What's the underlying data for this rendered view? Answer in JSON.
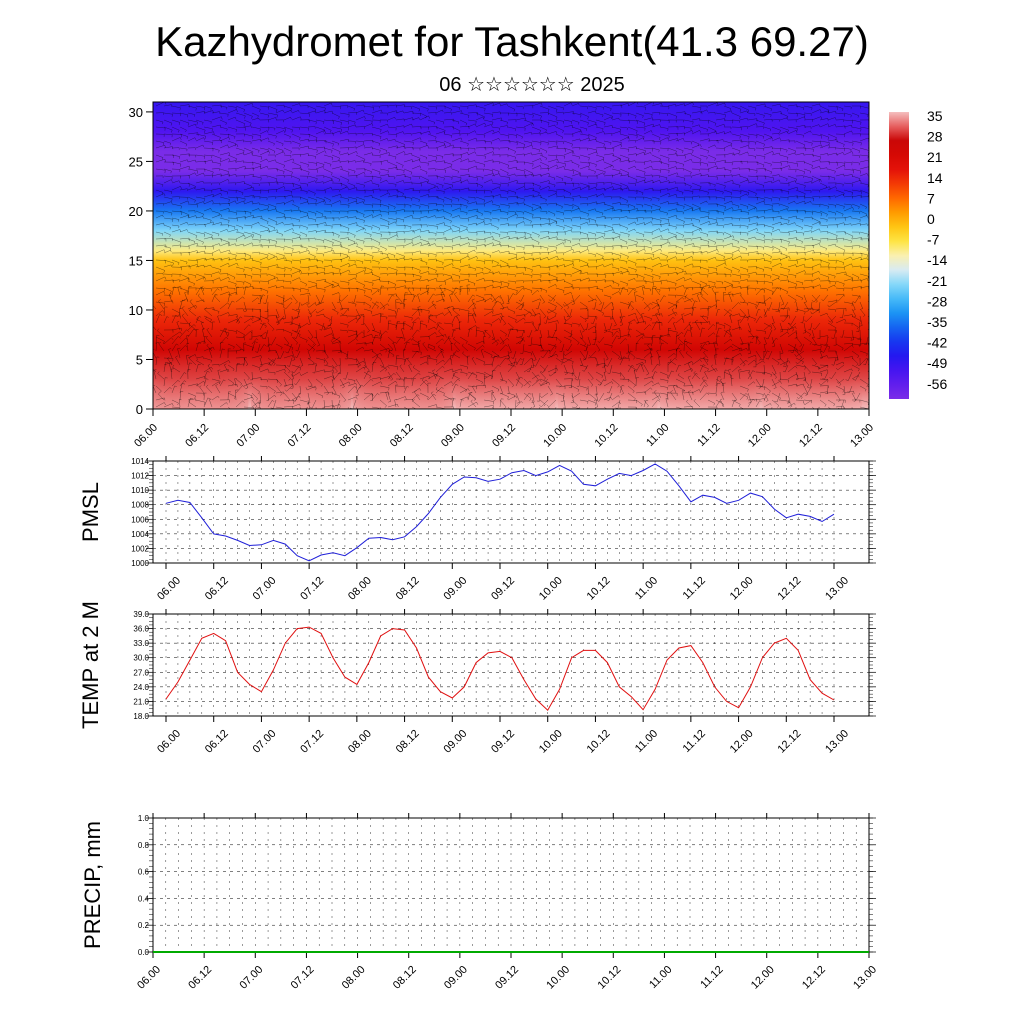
{
  "title": "Kazhydromet for Tashkent(41.3 69.27)",
  "subtitle": "06 ☆☆☆☆☆☆ 2025",
  "colors": {
    "pmsl_line": "#1f1fd8",
    "temp_line": "#e01010",
    "precip_line": "#00aa00"
  },
  "time_ticks": [
    "06.00",
    "06.12",
    "07.00",
    "07.12",
    "08.00",
    "08.12",
    "09.00",
    "09.12",
    "10.00",
    "10.12",
    "11.00",
    "11.12",
    "12.00",
    "12.12",
    "13.00"
  ],
  "chart_data": [
    {
      "type": "heatmap",
      "title": "",
      "x": [
        "06.00",
        "06.12",
        "07.00",
        "07.12",
        "08.00",
        "08.12",
        "09.00",
        "09.12",
        "10.00",
        "10.12",
        "11.00",
        "11.12",
        "12.00",
        "12.12",
        "13.00"
      ],
      "y_ticks": [
        0,
        5,
        10,
        15,
        20,
        25,
        30
      ],
      "ylim": [
        0,
        31
      ],
      "colorbar_labels": [
        35,
        28,
        21,
        14,
        7,
        0,
        -7,
        -14,
        -21,
        -28,
        -35,
        -42,
        -49,
        -56
      ],
      "profile_levels": [
        0,
        3,
        6,
        9,
        12,
        15,
        16,
        18,
        20,
        22,
        24,
        26,
        28,
        31
      ],
      "profile_values": [
        38,
        32,
        25,
        16,
        8,
        0,
        -8,
        -20,
        -32,
        -45,
        -58,
        -58,
        -50,
        -46
      ],
      "wind_barbs": true
    },
    {
      "type": "line",
      "ylabel": "PMSL",
      "ylim": [
        1000,
        1014
      ],
      "y_ticks": [
        1000,
        1002,
        1004,
        1006,
        1008,
        1010,
        1012,
        1014
      ],
      "x_start": 0,
      "x_step": 3,
      "values": [
        1008.2,
        1008.6,
        1008.3,
        1006.2,
        1004.0,
        1003.7,
        1003.1,
        1002.4,
        1002.5,
        1003.1,
        1002.6,
        1001.0,
        1000.3,
        1001.1,
        1001.4,
        1001.0,
        1002.1,
        1003.4,
        1003.5,
        1003.2,
        1003.6,
        1005.0,
        1006.8,
        1009.0,
        1010.8,
        1011.8,
        1011.7,
        1011.2,
        1011.5,
        1012.4,
        1012.7,
        1012.0,
        1012.5,
        1013.4,
        1012.6,
        1010.8,
        1010.6,
        1011.5,
        1012.3,
        1012.0,
        1012.7,
        1013.6,
        1012.6,
        1010.6,
        1008.4,
        1009.3,
        1009.0,
        1008.2,
        1008.6,
        1009.6,
        1009.1,
        1007.4,
        1006.2,
        1006.7,
        1006.4,
        1005.7,
        1006.7
      ],
      "grid": true
    },
    {
      "type": "line",
      "ylabel": "TEMP at 2 M",
      "ylim": [
        18.0,
        39.0
      ],
      "y_ticks": [
        "18.0",
        "21.0",
        "24.0",
        "27.0",
        "30.0",
        "33.0",
        "36.0",
        "39.0"
      ],
      "x_start": 0,
      "x_step": 3,
      "values": [
        21.5,
        25.0,
        29.5,
        34.0,
        35.0,
        33.5,
        27.0,
        24.5,
        23.0,
        27.5,
        33.0,
        36.0,
        36.3,
        35.0,
        30.0,
        26.0,
        24.5,
        29.0,
        34.5,
        36.0,
        35.7,
        32.0,
        26.0,
        23.0,
        21.7,
        24.0,
        29.0,
        31.0,
        31.3,
        30.0,
        25.5,
        21.5,
        19.2,
        23.5,
        30.0,
        31.5,
        31.5,
        29.0,
        24.0,
        22.0,
        19.3,
        23.5,
        29.5,
        32.0,
        32.5,
        29.0,
        24.0,
        21.0,
        19.7,
        24.0,
        30.0,
        33.0,
        34.0,
        31.5,
        25.5,
        22.7,
        21.3
      ],
      "grid": true
    },
    {
      "type": "line",
      "ylabel": "PRECIP, mm",
      "ylim": [
        0.0,
        1.0
      ],
      "y_ticks": [
        "0.0",
        "0.2",
        "0.4",
        "0.6",
        "0.8",
        "1.0"
      ],
      "values": [
        0,
        0
      ],
      "grid": true
    }
  ]
}
